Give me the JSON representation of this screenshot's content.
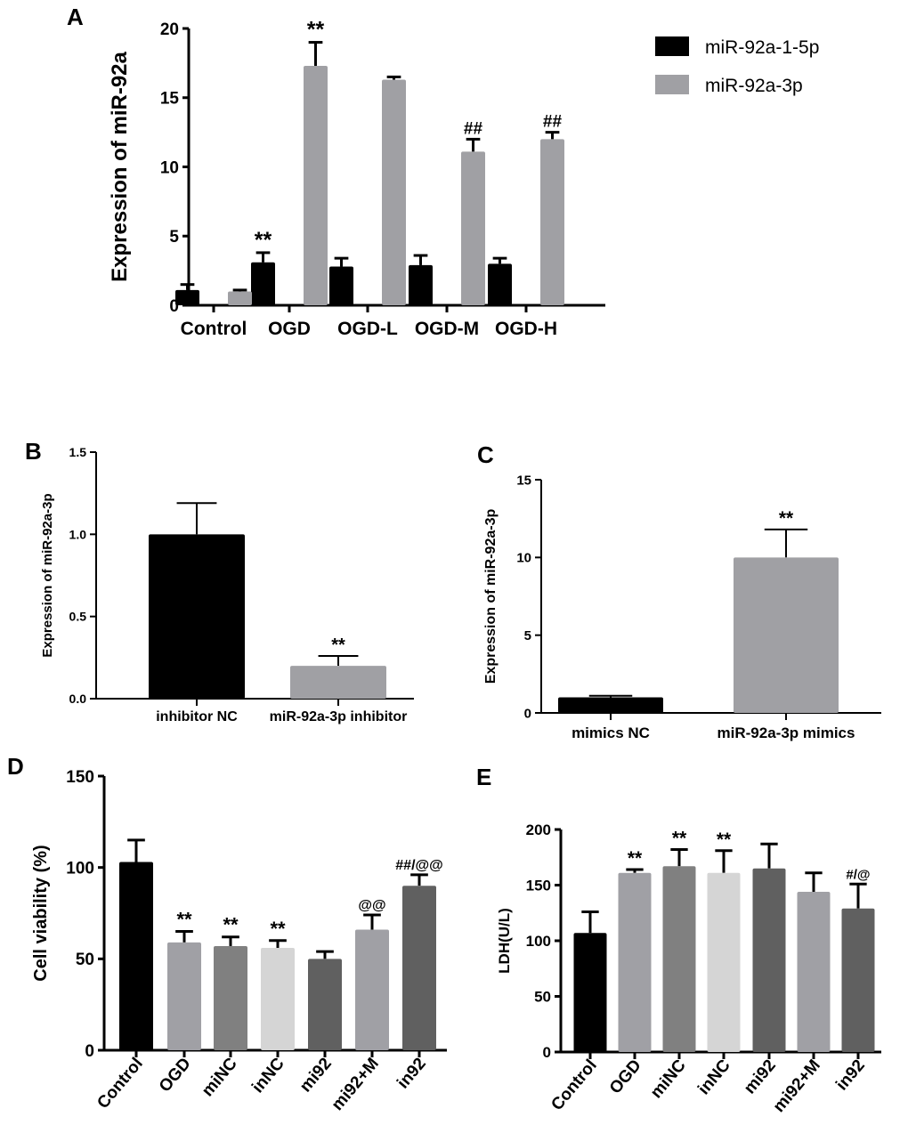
{
  "chart_data": [
    {
      "panel": "A",
      "type": "bar",
      "title": "",
      "xlabel": "",
      "ylabel": "Expression of miR-92a",
      "ylim": [
        0,
        20
      ],
      "yticks": [
        0,
        5,
        10,
        15,
        20
      ],
      "categories": [
        "Control",
        "OGD",
        "OGD-L",
        "OGD-M",
        "OGD-H"
      ],
      "legend_position": "top-right",
      "series": [
        {
          "name": "miR-92a-1-5p",
          "color": "#000000",
          "values": [
            1.1,
            3.1,
            2.8,
            2.9,
            3.0
          ],
          "errors": [
            0.4,
            0.7,
            0.6,
            0.7,
            0.4
          ],
          "annotations": [
            "",
            "**",
            "",
            "",
            ""
          ]
        },
        {
          "name": "miR-92a-3p",
          "color": "#a0a0a4",
          "values": [
            1.0,
            17.3,
            16.3,
            11.1,
            12.0
          ],
          "errors": [
            0.1,
            1.7,
            0.2,
            0.9,
            0.5
          ],
          "annotations": [
            "",
            "**",
            "",
            "##",
            "##"
          ]
        }
      ]
    },
    {
      "panel": "B",
      "type": "bar",
      "ylabel": "Expression of miR-92a-3p",
      "ylim": [
        0,
        1.5
      ],
      "yticks": [
        "0.0",
        "0.5",
        "1.0",
        "1.5"
      ],
      "categories": [
        "inhibitor NC",
        "miR-92a-3p inhibitor"
      ],
      "values": [
        1.0,
        0.2
      ],
      "errors": [
        0.19,
        0.06
      ],
      "colors": [
        "#000000",
        "#a0a0a4"
      ],
      "annotations": [
        "",
        "**"
      ]
    },
    {
      "panel": "C",
      "type": "bar",
      "ylabel": "Expression of miR-92a-3p",
      "ylim": [
        0,
        15
      ],
      "yticks": [
        0,
        5,
        10,
        15
      ],
      "categories": [
        "mimics NC",
        "miR-92a-3p mimics"
      ],
      "values": [
        1.0,
        10.0
      ],
      "errors": [
        0.1,
        1.8
      ],
      "colors": [
        "#000000",
        "#a0a0a4"
      ],
      "annotations": [
        "",
        "**"
      ]
    },
    {
      "panel": "D",
      "type": "bar",
      "ylabel": "Cell viability (%)",
      "ylim": [
        0,
        150
      ],
      "yticks": [
        0,
        50,
        100,
        150
      ],
      "categories": [
        "Control",
        "OGD",
        "miNC",
        "inNC",
        "mi92",
        "mi92+M",
        "in92"
      ],
      "values": [
        103,
        59,
        57,
        56,
        50,
        66,
        90
      ],
      "errors": [
        12,
        6,
        5,
        4,
        4,
        8,
        6
      ],
      "colors": [
        "#000000",
        "#a0a0a5",
        "#808080",
        "#d5d5d5",
        "#606060",
        "#a0a0a5",
        "#606060"
      ],
      "annotations": [
        "",
        "**",
        "**",
        "**",
        "",
        "@@",
        "##/@@"
      ]
    },
    {
      "panel": "E",
      "type": "bar",
      "ylabel": "LDH(U/L)",
      "ylim": [
        0,
        200
      ],
      "yticks": [
        0,
        50,
        100,
        150,
        200
      ],
      "categories": [
        "Control",
        "OGD",
        "miNC",
        "inNC",
        "mi92",
        "mi92+M",
        "in92"
      ],
      "values": [
        107,
        161,
        167,
        161,
        165,
        144,
        129
      ],
      "errors": [
        19,
        3,
        15,
        20,
        22,
        17,
        22
      ],
      "colors": [
        "#000000",
        "#a0a0a5",
        "#808080",
        "#d5d5d5",
        "#606060",
        "#a0a0a5",
        "#606060"
      ],
      "annotations": [
        "",
        "**",
        "**",
        "**",
        "",
        "",
        "#/@"
      ]
    }
  ]
}
